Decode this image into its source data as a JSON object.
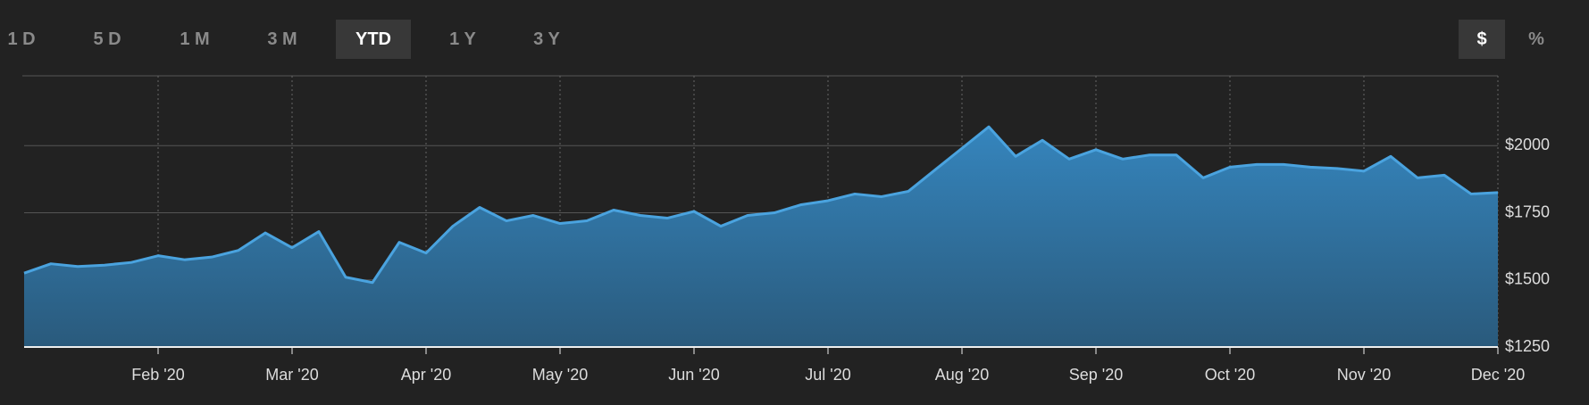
{
  "range_buttons": [
    "1 D",
    "5 D",
    "1 M",
    "3 M",
    "YTD",
    "1 Y",
    "3 Y"
  ],
  "unit_buttons": [
    "$",
    "%"
  ],
  "chart_data": {
    "type": "area",
    "categories": [
      null,
      null,
      null,
      null,
      null,
      "Feb '20",
      null,
      null,
      null,
      null,
      "Mar '20",
      null,
      null,
      null,
      null,
      "Apr '20",
      null,
      null,
      null,
      null,
      "May '20",
      null,
      null,
      null,
      null,
      "Jun '20",
      null,
      null,
      null,
      null,
      "Jul '20",
      null,
      null,
      null,
      null,
      "Aug '20",
      null,
      null,
      null,
      null,
      "Sep '20",
      null,
      null,
      null,
      null,
      "Oct '20",
      null,
      null,
      null,
      null,
      "Nov '20",
      null,
      null,
      null,
      null,
      "Dec '20"
    ],
    "series": [
      {
        "color": "#4aa3df",
        "values": [
          1525,
          1560,
          1550,
          1555,
          1565,
          1590,
          1575,
          1585,
          1610,
          1675,
          1620,
          1680,
          1510,
          1490,
          1640,
          1600,
          1700,
          1770,
          1720,
          1740,
          1710,
          1720,
          1760,
          1740,
          1730,
          1755,
          1700,
          1740,
          1750,
          1780,
          1795,
          1820,
          1810,
          1830,
          1910,
          1990,
          2070,
          1960,
          2020,
          1950,
          1985,
          1950,
          1965,
          1965,
          1880,
          1920,
          1930,
          1930,
          1920,
          1915,
          1905,
          1960,
          1880,
          1890,
          1820,
          1825
        ]
      }
    ],
    "ylim": [
      1250,
      2260
    ],
    "yticks": [
      {
        "value": 1250,
        "label": "$1250"
      },
      {
        "value": 1500,
        "label": "$1500"
      },
      {
        "value": 1750,
        "label": "$1750"
      },
      {
        "value": 2000,
        "label": "$2000"
      }
    ],
    "grid": true
  }
}
